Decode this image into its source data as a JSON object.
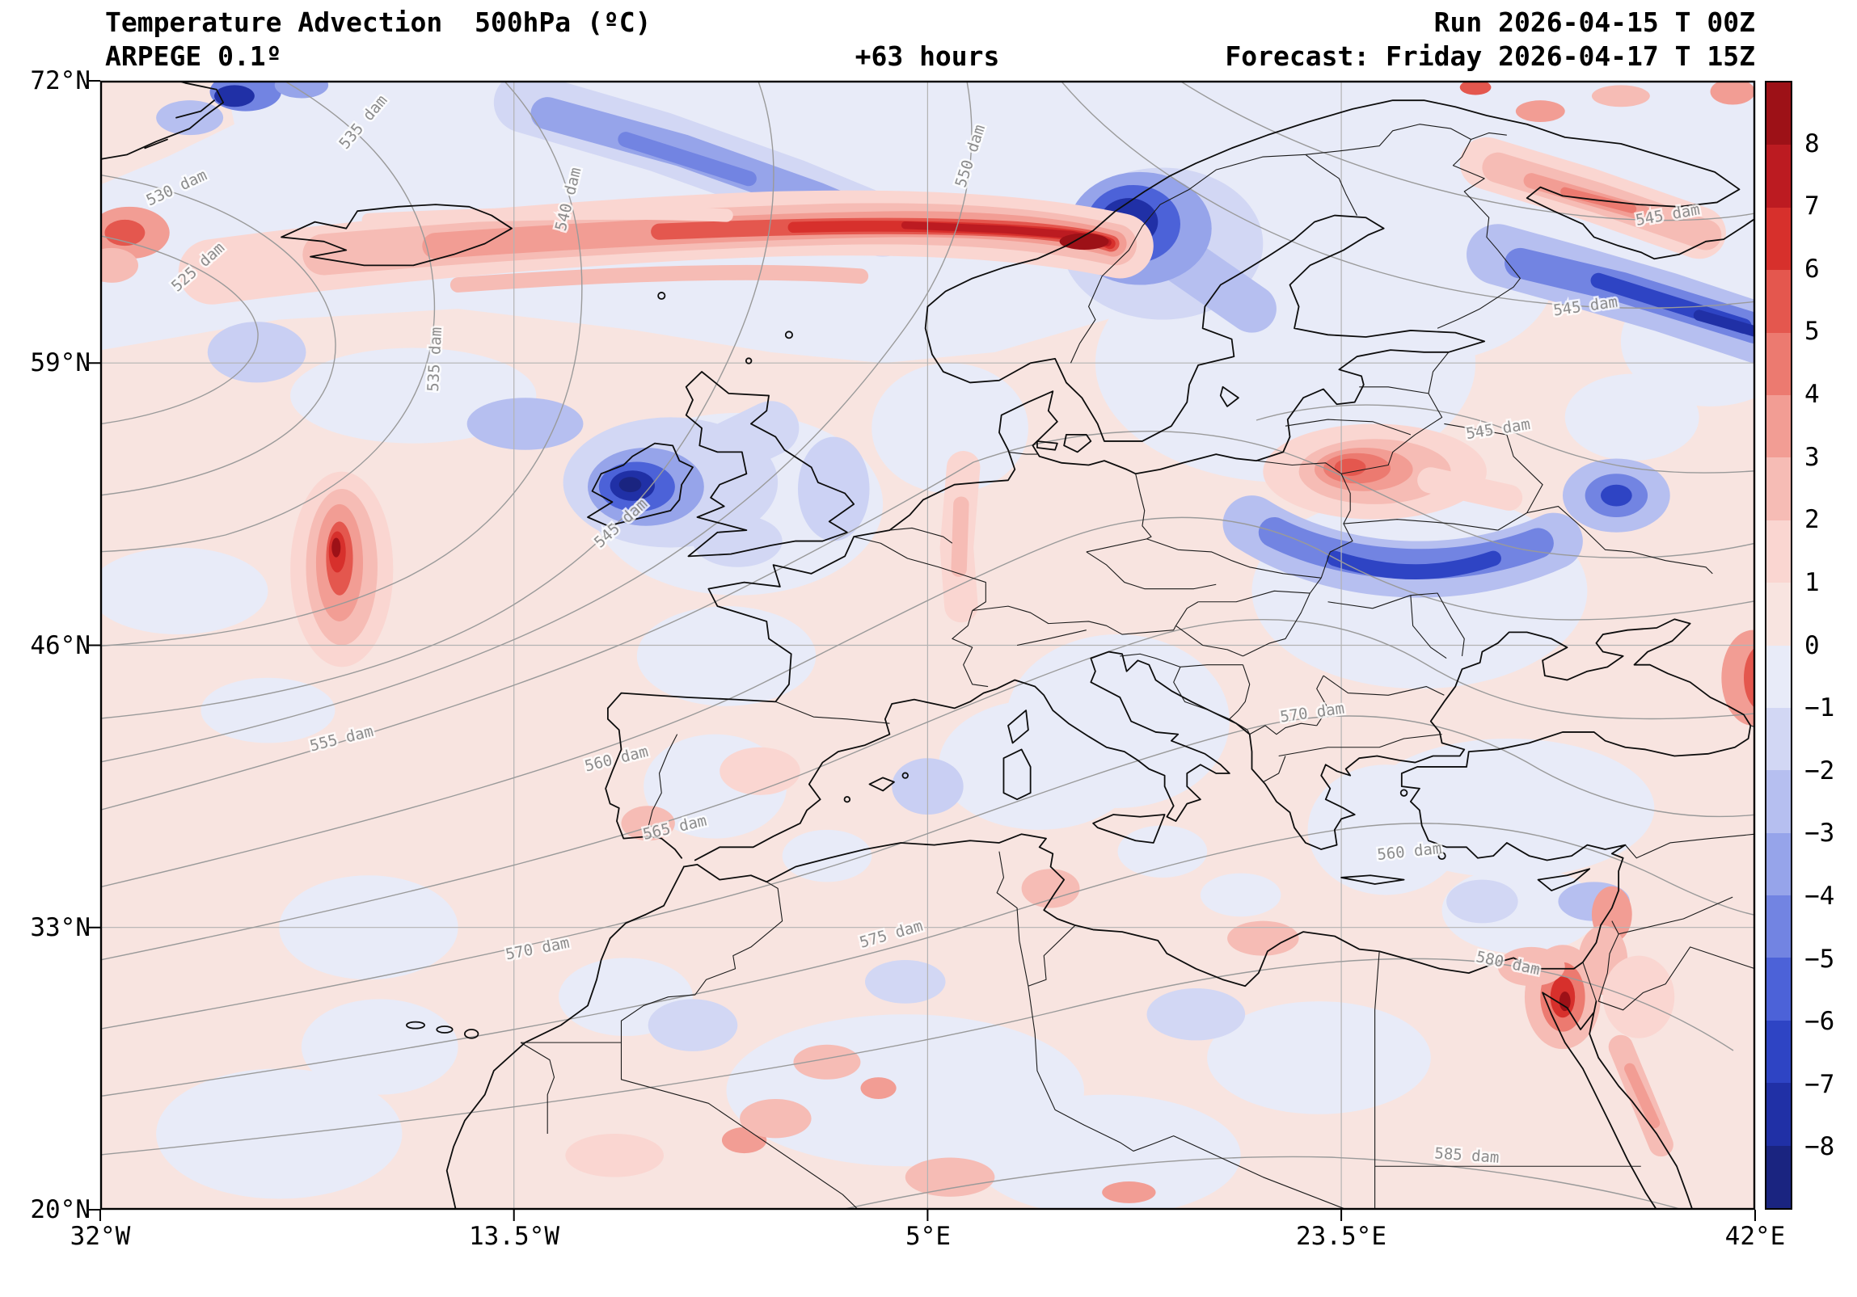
{
  "header": {
    "title": "Temperature Advection  500hPa (ºC)",
    "model": "ARPEGE 0.1º",
    "lead": "+63 hours",
    "run": "Run 2026-04-15 T 00Z",
    "forecast": "Forecast: Friday 2026-04-17 T 15Z"
  },
  "axes": {
    "y_ticks": [
      "72°N",
      "59°N",
      "46°N",
      "33°N",
      "20°N"
    ],
    "x_ticks": [
      "32°W",
      "13.5°W",
      "5°E",
      "23.5°E",
      "42°E"
    ]
  },
  "colorbar": {
    "units": "ºC",
    "tick_labels": [
      "8",
      "7",
      "6",
      "5",
      "4",
      "3",
      "2",
      "1",
      "0",
      "−1",
      "−2",
      "−3",
      "−4",
      "−5",
      "−6",
      "−7",
      "−8"
    ],
    "colors_top_to_bottom": [
      "#9d1117",
      "#bc1b21",
      "#d7302c",
      "#e4574e",
      "#ec7a70",
      "#f29d94",
      "#f6bcb5",
      "#fad6d1",
      "#f8e4e0",
      "#e8ebf8",
      "#d2d7f4",
      "#b6bff0",
      "#96a4ea",
      "#7284e2",
      "#4c62d8",
      "#2e44c4",
      "#2030a6",
      "#1a2480"
    ]
  },
  "contour_labels": [
    "525 dam",
    "530 dam",
    "535 dam",
    "535 dam",
    "540 dam",
    "545 dam",
    "550 dam",
    "555 dam",
    "560 dam",
    "565 dam",
    "570 dam",
    "570 dam",
    "575 dam",
    "580 dam",
    "585 dam",
    "545 dam",
    "545 dam",
    "545 dam",
    "560 dam"
  ],
  "chart_data": {
    "type": "heatmap",
    "title": "Temperature Advection 500hPa (ºC)",
    "model": "ARPEGE 0.1º",
    "run": "2026-04-15 00Z",
    "lead_hours": 63,
    "valid": "Friday 2026-04-17 15Z",
    "projection": "plate carrée, Europe / North Atlantic",
    "x": {
      "label": "longitude",
      "range_deg": [
        -32,
        42
      ],
      "ticks": [
        "32°W",
        "13.5°W",
        "5°E",
        "23.5°E",
        "42°E"
      ]
    },
    "y": {
      "label": "latitude",
      "range_deg": [
        20,
        72
      ],
      "ticks": [
        "72°N",
        "59°N",
        "46°N",
        "33°N",
        "20°N"
      ]
    },
    "fill_field": {
      "name": "temperature advection",
      "units": "ºC",
      "levels": [
        -8,
        -7,
        -6,
        -5,
        -4,
        -3,
        -2,
        -1,
        0,
        1,
        2,
        3,
        4,
        5,
        6,
        7,
        8
      ],
      "colormap": "blue-white-red"
    },
    "contour_field": {
      "name": "geopotential height 500hPa",
      "units": "dam",
      "labeled_levels": [
        525,
        530,
        535,
        540,
        545,
        550,
        555,
        560,
        565,
        570,
        575,
        580,
        585
      ]
    },
    "grid": true,
    "legend_position": "right colorbar",
    "features": [
      {
        "type": "warm advection",
        "location": "North Atlantic into central Norway (~20°W–12°E, 63–66°N)",
        "peak": 8
      },
      {
        "type": "cold advection",
        "location": "coastal mid/north Norway (~14°E, 65–67°N)",
        "peak": -8
      },
      {
        "type": "cold advection",
        "location": "Norwegian Sea band (~13°W–3°E, 65–71°N)",
        "peak": -4
      },
      {
        "type": "cold advection",
        "location": "Ireland (~8°W, 53°N)",
        "peak": -8
      },
      {
        "type": "warm advection",
        "location": "mid-Atlantic west of Biscay (~21°W, 48–52°N)",
        "peak": 7
      },
      {
        "type": "warm advection",
        "location": "Baltics/Belarus (~25°E, 54°N)",
        "peak": 5
      },
      {
        "type": "cold advection",
        "location": "western Ukraine arc (~21–32°E, 49–51°N)",
        "peak": -5
      },
      {
        "type": "cold advection",
        "location": "western Russia (~36°E, 53°N)",
        "peak": -3
      },
      {
        "type": "cold advection",
        "location": "White Sea to right edge (~31–42°E, 60–64°N)",
        "peak": -4
      },
      {
        "type": "warm advection",
        "location": "Kola peninsula (~30–40°E, 65–68°N)",
        "peak": 3
      },
      {
        "type": "warm advection",
        "location": "eastern Mediterranean / Sinai (~33°E, 30°N)",
        "peak": 6
      },
      {
        "type": "warm advection",
        "location": "Caucasus at right edge (~42°E, 44°N)",
        "peak": 5
      }
    ]
  }
}
